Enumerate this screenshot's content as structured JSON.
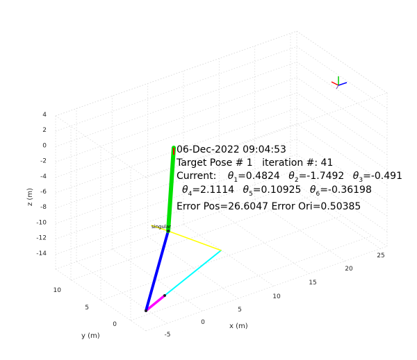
{
  "chart_data": {
    "type": "line",
    "title": "",
    "xlabel": "x (m)",
    "ylabel": "y (m)",
    "zlabel": "z (m)",
    "grid": true,
    "x_ticks": [
      "-5",
      "0",
      "5",
      "10",
      "15",
      "20",
      "25"
    ],
    "y_ticks": [
      "0",
      "5",
      "10"
    ],
    "z_ticks": [
      "4",
      "2",
      "0",
      "-2",
      "-4",
      "-6",
      "-8",
      "-10",
      "-12",
      "-14"
    ],
    "series": [
      {
        "color": "#ff00ff",
        "label": "",
        "values": []
      },
      {
        "color": "#00ffff",
        "label": "",
        "values": []
      },
      {
        "color": "#0000ff",
        "label": "",
        "values": []
      },
      {
        "color": "#ffff00",
        "label": "",
        "values": []
      },
      {
        "color": "#00e000",
        "label": "",
        "values": []
      }
    ],
    "markers": {
      "singular_label": "singular",
      "frame_colors": [
        "#ff0000",
        "#00cc00",
        "#0000ff"
      ]
    },
    "annotation": {
      "timestamp": "06-Dec-2022 09:04:53",
      "target_line": "Target Pose # 1   iteration #: 41",
      "current_prefix": "Current:",
      "thetas": [
        {
          "sym": "θ",
          "sub": "1",
          "value": "=0.4824"
        },
        {
          "sym": "θ",
          "sub": "2",
          "value": "=-1.7492"
        },
        {
          "sym": "θ",
          "sub": "3",
          "value": "=-0.491"
        },
        {
          "sym": "θ",
          "sub": "4",
          "value": "=2.1114"
        },
        {
          "sym": "θ",
          "sub": "5",
          "value": "=0.10925"
        },
        {
          "sym": "θ",
          "sub": "6",
          "value": "=-0.36198"
        }
      ],
      "error_line": "Error Pos=26.6047  Error Ori=0.50385"
    }
  }
}
